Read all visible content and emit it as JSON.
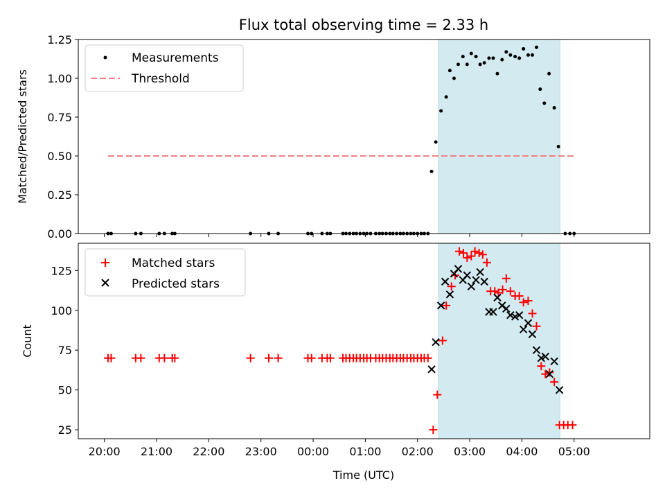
{
  "chart_data": {
    "title": "Flux total observing time = 2.33 h",
    "xlabel": "Time (UTC)",
    "x_unit": "hours after 20:00 UTC",
    "xlim": [
      -0.5,
      10.45
    ],
    "x_ticks": [
      {
        "v": 0,
        "label": "20:00"
      },
      {
        "v": 1,
        "label": "21:00"
      },
      {
        "v": 2,
        "label": "22:00"
      },
      {
        "v": 3,
        "label": "23:00"
      },
      {
        "v": 4,
        "label": "00:00"
      },
      {
        "v": 5,
        "label": "01:00"
      },
      {
        "v": 6,
        "label": "02:00"
      },
      {
        "v": 7,
        "label": "03:00"
      },
      {
        "v": 8,
        "label": "04:00"
      },
      {
        "v": 9,
        "label": "05:00"
      }
    ],
    "shaded_region": {
      "x": [
        6.4,
        8.73
      ],
      "color": "#d3eaf1"
    },
    "top": {
      "type": "scatter",
      "ylabel": "Matched/Predicted stars",
      "ylim": [
        0,
        1.25
      ],
      "y_ticks": [
        "0.00",
        "0.25",
        "0.50",
        "0.75",
        "1.00",
        "1.25"
      ],
      "threshold": {
        "name": "Threshold",
        "value": 0.5,
        "x_range": [
          0.07,
          9.0
        ],
        "color": "#f08080"
      },
      "measurements": {
        "name": "Measurements",
        "points": [
          [
            0.07,
            0
          ],
          [
            0.13,
            0
          ],
          [
            0.6,
            0
          ],
          [
            0.7,
            0
          ],
          [
            1.05,
            0
          ],
          [
            1.15,
            0
          ],
          [
            1.3,
            0
          ],
          [
            1.35,
            0
          ],
          [
            2.8,
            0
          ],
          [
            3.15,
            0
          ],
          [
            3.33,
            0
          ],
          [
            3.9,
            0
          ],
          [
            3.97,
            0
          ],
          [
            4.17,
            0
          ],
          [
            4.27,
            0
          ],
          [
            4.33,
            0
          ],
          [
            4.57,
            0
          ],
          [
            4.63,
            0
          ],
          [
            4.7,
            0
          ],
          [
            4.77,
            0
          ],
          [
            4.83,
            0
          ],
          [
            4.9,
            0
          ],
          [
            4.97,
            0
          ],
          [
            5.03,
            0
          ],
          [
            5.1,
            0
          ],
          [
            5.2,
            0
          ],
          [
            5.27,
            0
          ],
          [
            5.33,
            0
          ],
          [
            5.4,
            0
          ],
          [
            5.47,
            0
          ],
          [
            5.53,
            0
          ],
          [
            5.6,
            0
          ],
          [
            5.67,
            0
          ],
          [
            5.73,
            0
          ],
          [
            5.8,
            0
          ],
          [
            5.87,
            0
          ],
          [
            5.93,
            0
          ],
          [
            6.0,
            0
          ],
          [
            6.07,
            0
          ],
          [
            6.13,
            0
          ],
          [
            6.2,
            0
          ],
          [
            6.27,
            0.4
          ],
          [
            6.35,
            0.59
          ],
          [
            6.45,
            0.79
          ],
          [
            6.55,
            0.88
          ],
          [
            6.62,
            1.05
          ],
          [
            6.7,
            1.0
          ],
          [
            6.78,
            1.09
          ],
          [
            6.87,
            1.14
          ],
          [
            6.95,
            1.09
          ],
          [
            7.03,
            1.16
          ],
          [
            7.12,
            1.14
          ],
          [
            7.2,
            1.09
          ],
          [
            7.28,
            1.1
          ],
          [
            7.37,
            1.13
          ],
          [
            7.45,
            1.13
          ],
          [
            7.53,
            1.03
          ],
          [
            7.62,
            1.12
          ],
          [
            7.7,
            1.17
          ],
          [
            7.78,
            1.15
          ],
          [
            7.87,
            1.14
          ],
          [
            7.95,
            1.13
          ],
          [
            8.03,
            1.19
          ],
          [
            8.12,
            1.15
          ],
          [
            8.2,
            1.15
          ],
          [
            8.28,
            1.2
          ],
          [
            8.35,
            0.93
          ],
          [
            8.43,
            0.84
          ],
          [
            8.52,
            1.03
          ],
          [
            8.62,
            0.81
          ],
          [
            8.7,
            0.56
          ],
          [
            8.83,
            0
          ],
          [
            8.92,
            0
          ],
          [
            9.0,
            0
          ]
        ]
      }
    },
    "bottom": {
      "type": "scatter",
      "ylabel": "Count",
      "ylim": [
        19.4,
        142.1
      ],
      "y_ticks": [
        "25",
        "50",
        "75",
        "100",
        "125"
      ],
      "series": [
        {
          "name": "Matched stars",
          "marker": "+",
          "color": "#ff0000",
          "points": [
            [
              0.07,
              70
            ],
            [
              0.13,
              70
            ],
            [
              0.6,
              70
            ],
            [
              0.7,
              70
            ],
            [
              1.05,
              70
            ],
            [
              1.15,
              70
            ],
            [
              1.3,
              70
            ],
            [
              1.35,
              70
            ],
            [
              2.8,
              70
            ],
            [
              3.15,
              70
            ],
            [
              3.33,
              70
            ],
            [
              3.9,
              70
            ],
            [
              3.97,
              70
            ],
            [
              4.17,
              70
            ],
            [
              4.27,
              70
            ],
            [
              4.33,
              70
            ],
            [
              4.57,
              70
            ],
            [
              4.63,
              70
            ],
            [
              4.7,
              70
            ],
            [
              4.77,
              70
            ],
            [
              4.83,
              70
            ],
            [
              4.9,
              70
            ],
            [
              4.97,
              70
            ],
            [
              5.03,
              70
            ],
            [
              5.1,
              70
            ],
            [
              5.2,
              70
            ],
            [
              5.27,
              70
            ],
            [
              5.33,
              70
            ],
            [
              5.4,
              70
            ],
            [
              5.47,
              70
            ],
            [
              5.53,
              70
            ],
            [
              5.6,
              70
            ],
            [
              5.67,
              70
            ],
            [
              5.73,
              70
            ],
            [
              5.8,
              70
            ],
            [
              5.87,
              70
            ],
            [
              5.93,
              70
            ],
            [
              6.0,
              70
            ],
            [
              6.07,
              70
            ],
            [
              6.13,
              70
            ],
            [
              6.2,
              70
            ],
            [
              6.3,
              25
            ],
            [
              6.38,
              47
            ],
            [
              6.48,
              81
            ],
            [
              6.55,
              103
            ],
            [
              6.65,
              115
            ],
            [
              6.72,
              122
            ],
            [
              6.8,
              137
            ],
            [
              6.88,
              136
            ],
            [
              6.95,
              133
            ],
            [
              7.03,
              134
            ],
            [
              7.1,
              137
            ],
            [
              7.18,
              136
            ],
            [
              7.25,
              135
            ],
            [
              7.33,
              130
            ],
            [
              7.4,
              112
            ],
            [
              7.48,
              112
            ],
            [
              7.55,
              111
            ],
            [
              7.63,
              113
            ],
            [
              7.7,
              120
            ],
            [
              7.78,
              112
            ],
            [
              7.87,
              109
            ],
            [
              7.95,
              109
            ],
            [
              8.03,
              105
            ],
            [
              8.12,
              106
            ],
            [
              8.2,
              98
            ],
            [
              8.28,
              90
            ],
            [
              8.37,
              65
            ],
            [
              8.45,
              60
            ],
            [
              8.53,
              61
            ],
            [
              8.62,
              55
            ],
            [
              8.72,
              28
            ],
            [
              8.8,
              28
            ],
            [
              8.88,
              28
            ],
            [
              8.97,
              28
            ]
          ]
        },
        {
          "name": "Predicted stars",
          "marker": "x",
          "color": "#000000",
          "points": [
            [
              6.27,
              63
            ],
            [
              6.35,
              80
            ],
            [
              6.45,
              103
            ],
            [
              6.53,
              118
            ],
            [
              6.62,
              110
            ],
            [
              6.7,
              123
            ],
            [
              6.78,
              126
            ],
            [
              6.87,
              119
            ],
            [
              6.95,
              122
            ],
            [
              7.03,
              115
            ],
            [
              7.12,
              119
            ],
            [
              7.2,
              124
            ],
            [
              7.28,
              118
            ],
            [
              7.37,
              99
            ],
            [
              7.45,
              99
            ],
            [
              7.53,
              108
            ],
            [
              7.62,
              103
            ],
            [
              7.7,
              101
            ],
            [
              7.78,
              97
            ],
            [
              7.87,
              96
            ],
            [
              7.95,
              97
            ],
            [
              8.03,
              88
            ],
            [
              8.12,
              92
            ],
            [
              8.2,
              85
            ],
            [
              8.28,
              75
            ],
            [
              8.37,
              70
            ],
            [
              8.45,
              71
            ],
            [
              8.53,
              60
            ],
            [
              8.62,
              68
            ],
            [
              8.72,
              50
            ]
          ]
        }
      ]
    }
  }
}
